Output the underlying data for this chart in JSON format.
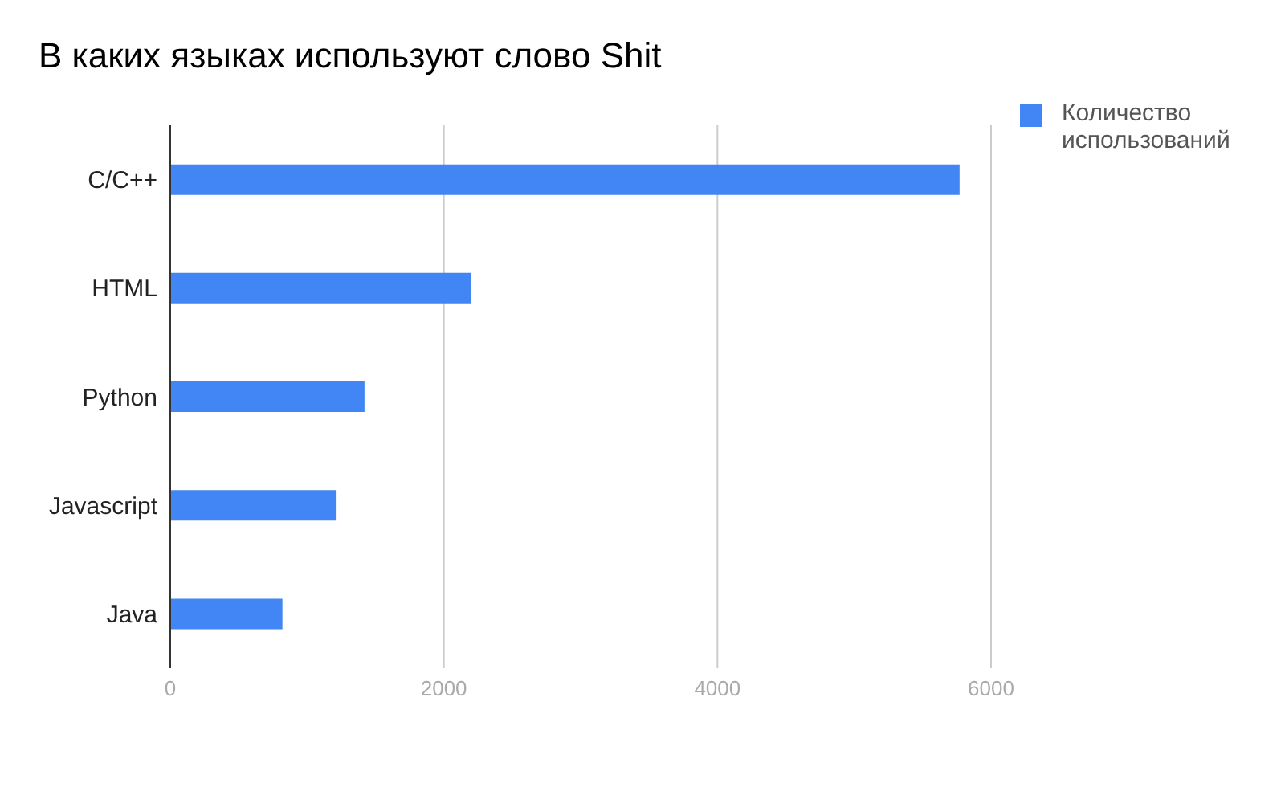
{
  "chart_data": {
    "type": "bar",
    "orientation": "horizontal",
    "title": "В каких языках используют слово Shit",
    "categories": [
      "C/C++",
      "HTML",
      "Python",
      "Javascript",
      "Java"
    ],
    "series": [
      {
        "name": "Количество использований",
        "color": "#4285f4",
        "values": [
          5770,
          2200,
          1420,
          1210,
          820
        ]
      }
    ],
    "xlim": [
      0,
      6000
    ],
    "xticks": [
      0,
      2000,
      4000,
      6000
    ],
    "grid": "x",
    "legend": "top right"
  }
}
